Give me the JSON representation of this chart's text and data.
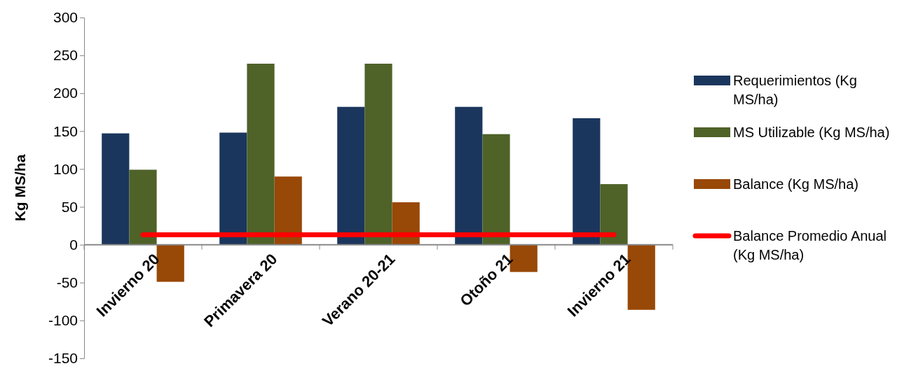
{
  "chart_data": {
    "type": "bar",
    "ylabel": "Kg MS/ha",
    "categories": [
      "Invierno 20",
      "Primavera 20",
      "Verano 20-21",
      "Otoño 21",
      "Invierno 21"
    ],
    "series": [
      {
        "name": "Requerimientos (Kg MS/ha)",
        "color": "#1b365d",
        "values": [
          147,
          148,
          182,
          182,
          167
        ]
      },
      {
        "name": "MS Utilizable (Kg MS/ha)",
        "color": "#4f6228",
        "values": [
          99,
          239,
          239,
          146,
          80
        ]
      },
      {
        "name": "Balance (Kg MS/ha)",
        "color": "#984807",
        "values": [
          -49,
          90,
          56,
          -36,
          -86
        ]
      },
      {
        "name": "Balance Promedio Anual (Kg MS/ha)",
        "type": "line",
        "color": "#ff0000",
        "values": [
          13,
          13,
          13,
          13,
          13
        ]
      }
    ],
    "ylim": [
      -150,
      300
    ],
    "yticks": [
      -150,
      -100,
      -50,
      0,
      50,
      100,
      150,
      200,
      250,
      300
    ],
    "grid": false,
    "legend": "right"
  }
}
